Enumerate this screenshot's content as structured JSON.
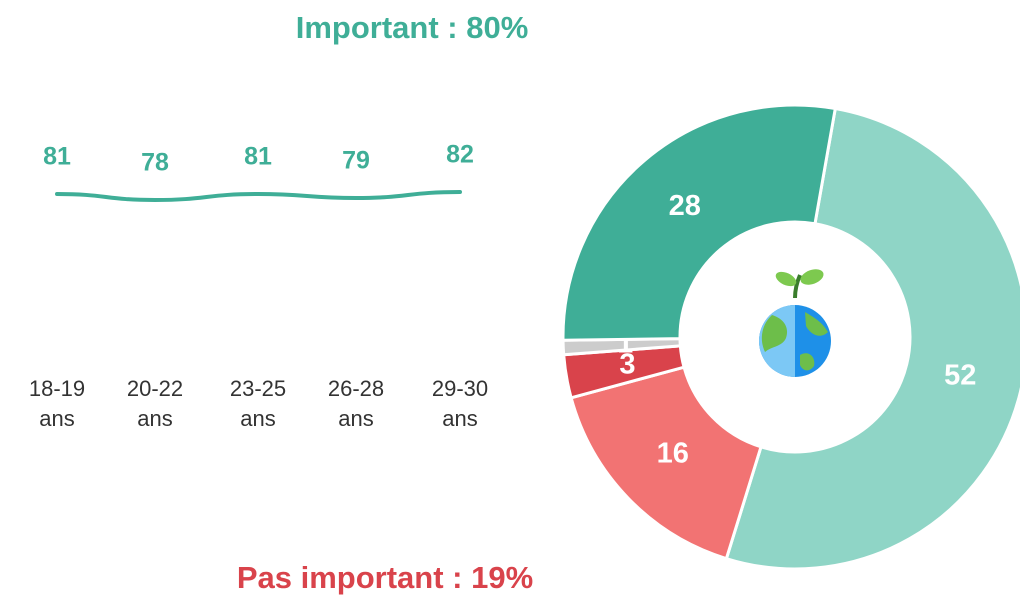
{
  "chart_data": [
    {
      "type": "line",
      "title": "Important : 80%",
      "categories": [
        "18-19 ans",
        "20-22 ans",
        "23-25 ans",
        "26-28 ans",
        "29-30 ans"
      ],
      "values": [
        81,
        78,
        81,
        79,
        82
      ],
      "color": "#3fae97"
    },
    {
      "type": "donut",
      "title": "Pas important : 19%",
      "values": [
        52,
        16,
        3,
        1,
        28
      ],
      "colors": [
        "#8fd5c6",
        "#f27373",
        "#d9434b",
        "#cccccc",
        "#3fae97"
      ]
    }
  ]
}
